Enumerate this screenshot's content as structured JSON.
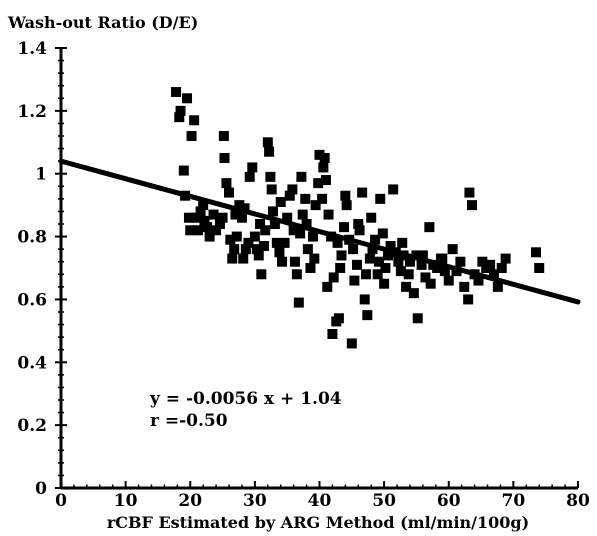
{
  "chart_data": {
    "type": "scatter",
    "ylabel": "Wash-out Ratio (D/E)",
    "xlabel": "rCBF Estimated by ARG Method (ml/min/100g)",
    "xlim": [
      0,
      80
    ],
    "ylim": [
      0,
      1.4
    ],
    "x_ticks": [
      "0",
      "10",
      "20",
      "30",
      "40",
      "50",
      "60",
      "70",
      "80"
    ],
    "y_ticks": [
      "0",
      "0.2",
      "0.4",
      "0.6",
      "0.8",
      "1",
      "1.2",
      "1.4"
    ],
    "grid": false,
    "legend": "none",
    "marker_color": "#000000",
    "annotations": [
      "y = -0.0056 x + 1.04",
      "r =-0.50"
    ],
    "regression": {
      "slope": -0.0056,
      "intercept": 1.04,
      "x_range": [
        0,
        80
      ]
    },
    "points": [
      [
        17.8,
        1.26
      ],
      [
        18.5,
        1.2
      ],
      [
        19.5,
        1.24
      ],
      [
        20.2,
        1.12
      ],
      [
        20.6,
        1.17
      ],
      [
        18.3,
        1.18
      ],
      [
        19.0,
        1.01
      ],
      [
        19.2,
        0.93
      ],
      [
        19.8,
        0.86
      ],
      [
        20.0,
        0.82
      ],
      [
        20.8,
        0.86
      ],
      [
        21.2,
        0.82
      ],
      [
        21.6,
        0.88
      ],
      [
        22.2,
        0.85
      ],
      [
        22.6,
        0.83
      ],
      [
        23.0,
        0.8
      ],
      [
        23.6,
        0.87
      ],
      [
        24.0,
        0.82
      ],
      [
        24.6,
        0.84
      ],
      [
        25.0,
        0.86
      ],
      [
        25.2,
        1.12
      ],
      [
        25.3,
        1.05
      ],
      [
        25.6,
        0.97
      ],
      [
        26.0,
        0.94
      ],
      [
        26.2,
        0.79
      ],
      [
        26.5,
        0.73
      ],
      [
        26.8,
        0.76
      ],
      [
        27.2,
        0.8
      ],
      [
        27.6,
        0.9
      ],
      [
        28.0,
        0.86
      ],
      [
        28.2,
        0.73
      ],
      [
        28.6,
        0.76
      ],
      [
        29.0,
        0.78
      ],
      [
        29.2,
        0.99
      ],
      [
        29.6,
        1.02
      ],
      [
        30.0,
        0.8
      ],
      [
        30.3,
        0.76
      ],
      [
        30.6,
        0.74
      ],
      [
        31.0,
        0.68
      ],
      [
        31.4,
        0.77
      ],
      [
        31.6,
        0.82
      ],
      [
        32.0,
        1.1
      ],
      [
        32.2,
        1.07
      ],
      [
        32.4,
        0.99
      ],
      [
        32.6,
        0.95
      ],
      [
        32.8,
        0.88
      ],
      [
        33.1,
        0.84
      ],
      [
        33.4,
        0.78
      ],
      [
        33.8,
        0.75
      ],
      [
        34.2,
        0.72
      ],
      [
        34.6,
        0.78
      ],
      [
        35.0,
        0.86
      ],
      [
        35.4,
        0.93
      ],
      [
        35.8,
        0.95
      ],
      [
        36.2,
        0.72
      ],
      [
        36.5,
        0.68
      ],
      [
        36.8,
        0.59
      ],
      [
        37.0,
        0.81
      ],
      [
        37.4,
        0.87
      ],
      [
        37.8,
        0.92
      ],
      [
        38.2,
        0.76
      ],
      [
        38.6,
        0.7
      ],
      [
        39.0,
        0.8
      ],
      [
        39.4,
        0.9
      ],
      [
        39.8,
        0.97
      ],
      [
        40.0,
        1.06
      ],
      [
        40.4,
        0.92
      ],
      [
        40.8,
        1.05
      ],
      [
        41.0,
        0.98
      ],
      [
        41.4,
        0.87
      ],
      [
        41.8,
        0.8
      ],
      [
        42.2,
        0.67
      ],
      [
        42.6,
        0.53
      ],
      [
        42.0,
        0.49
      ],
      [
        43.0,
        0.54
      ],
      [
        43.4,
        0.74
      ],
      [
        43.8,
        0.83
      ],
      [
        44.2,
        0.9
      ],
      [
        44.6,
        0.79
      ],
      [
        45.0,
        0.46
      ],
      [
        45.4,
        0.66
      ],
      [
        45.8,
        0.71
      ],
      [
        46.2,
        0.82
      ],
      [
        46.6,
        0.94
      ],
      [
        47.0,
        0.6
      ],
      [
        47.4,
        0.55
      ],
      [
        47.8,
        0.73
      ],
      [
        48.2,
        0.76
      ],
      [
        48.6,
        0.79
      ],
      [
        49.0,
        0.68
      ],
      [
        49.4,
        0.92
      ],
      [
        49.8,
        0.81
      ],
      [
        50.2,
        0.7
      ],
      [
        50.6,
        0.74
      ],
      [
        51.0,
        0.77
      ],
      [
        51.4,
        0.95
      ],
      [
        51.8,
        0.75
      ],
      [
        52.2,
        0.72
      ],
      [
        52.6,
        0.69
      ],
      [
        53.0,
        0.74
      ],
      [
        53.4,
        0.64
      ],
      [
        54.0,
        0.72
      ],
      [
        54.6,
        0.62
      ],
      [
        55.2,
        0.54
      ],
      [
        55.8,
        0.71
      ],
      [
        56.4,
        0.67
      ],
      [
        57.0,
        0.83
      ],
      [
        57.6,
        0.71
      ],
      [
        58.2,
        0.7
      ],
      [
        58.8,
        0.73
      ],
      [
        59.4,
        0.69
      ],
      [
        60.0,
        0.66
      ],
      [
        60.6,
        0.76
      ],
      [
        61.2,
        0.69
      ],
      [
        61.8,
        0.72
      ],
      [
        62.4,
        0.64
      ],
      [
        63.0,
        0.6
      ],
      [
        63.2,
        0.94
      ],
      [
        63.6,
        0.9
      ],
      [
        64.0,
        0.68
      ],
      [
        64.6,
        0.66
      ],
      [
        65.2,
        0.72
      ],
      [
        65.8,
        0.7
      ],
      [
        66.4,
        0.71
      ],
      [
        67.0,
        0.68
      ],
      [
        67.6,
        0.64
      ],
      [
        68.2,
        0.7
      ],
      [
        68.8,
        0.73
      ],
      [
        73.5,
        0.75
      ],
      [
        74.0,
        0.7
      ],
      [
        28.4,
        0.89
      ],
      [
        34.0,
        0.91
      ],
      [
        37.2,
        0.99
      ],
      [
        40.6,
        1.02
      ],
      [
        44.0,
        0.93
      ],
      [
        46.0,
        0.84
      ],
      [
        48.0,
        0.86
      ],
      [
        52.8,
        0.78
      ],
      [
        30.8,
        0.84
      ],
      [
        36.0,
        0.82
      ],
      [
        39.2,
        0.73
      ],
      [
        41.2,
        0.64
      ],
      [
        43.2,
        0.7
      ],
      [
        47.2,
        0.68
      ],
      [
        50.0,
        0.65
      ],
      [
        55.0,
        0.74
      ],
      [
        57.2,
        0.65
      ],
      [
        59.0,
        0.73
      ],
      [
        22.0,
        0.9
      ],
      [
        27.0,
        0.87
      ],
      [
        38.0,
        0.84
      ],
      [
        42.8,
        0.78
      ],
      [
        45.2,
        0.76
      ],
      [
        49.2,
        0.72
      ],
      [
        53.8,
        0.68
      ],
      [
        56.0,
        0.74
      ]
    ]
  }
}
